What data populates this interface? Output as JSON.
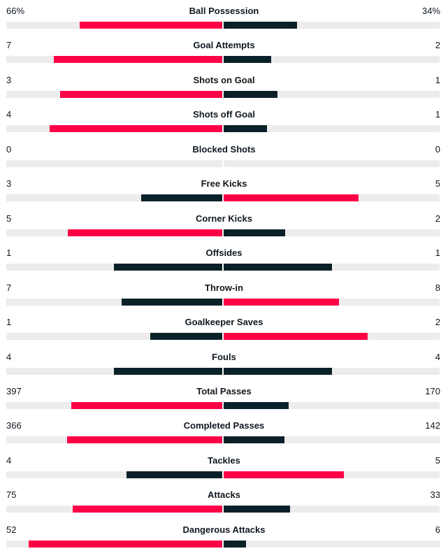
{
  "colors": {
    "winner": "#ff0046",
    "other": "#0b2129",
    "track": "#ececec",
    "text": "#101820"
  },
  "stats": [
    {
      "label": "Ball Possession",
      "home": "66%",
      "away": "34%",
      "home_share": 0.66,
      "away_share": 0.34
    },
    {
      "label": "Goal Attempts",
      "home": "7",
      "away": "2",
      "home_share": 0.78,
      "away_share": 0.22
    },
    {
      "label": "Shots on Goal",
      "home": "3",
      "away": "1",
      "home_share": 0.75,
      "away_share": 0.25
    },
    {
      "label": "Shots off Goal",
      "home": "4",
      "away": "1",
      "home_share": 0.8,
      "away_share": 0.2
    },
    {
      "label": "Blocked Shots",
      "home": "0",
      "away": "0",
      "home_share": 0,
      "away_share": 0
    },
    {
      "label": "Free Kicks",
      "home": "3",
      "away": "5",
      "home_share": 0.375,
      "away_share": 0.625
    },
    {
      "label": "Corner Kicks",
      "home": "5",
      "away": "2",
      "home_share": 0.714,
      "away_share": 0.286
    },
    {
      "label": "Offsides",
      "home": "1",
      "away": "1",
      "home_share": 0.5,
      "away_share": 0.5
    },
    {
      "label": "Throw-in",
      "home": "7",
      "away": "8",
      "home_share": 0.467,
      "away_share": 0.533
    },
    {
      "label": "Goalkeeper Saves",
      "home": "1",
      "away": "2",
      "home_share": 0.333,
      "away_share": 0.667
    },
    {
      "label": "Fouls",
      "home": "4",
      "away": "4",
      "home_share": 0.5,
      "away_share": 0.5
    },
    {
      "label": "Total Passes",
      "home": "397",
      "away": "170",
      "home_share": 0.7,
      "away_share": 0.3
    },
    {
      "label": "Completed Passes",
      "home": "366",
      "away": "142",
      "home_share": 0.72,
      "away_share": 0.28
    },
    {
      "label": "Tackles",
      "home": "4",
      "away": "5",
      "home_share": 0.444,
      "away_share": 0.556
    },
    {
      "label": "Attacks",
      "home": "75",
      "away": "33",
      "home_share": 0.694,
      "away_share": 0.306
    },
    {
      "label": "Dangerous Attacks",
      "home": "52",
      "away": "6",
      "home_share": 0.897,
      "away_share": 0.103
    }
  ]
}
